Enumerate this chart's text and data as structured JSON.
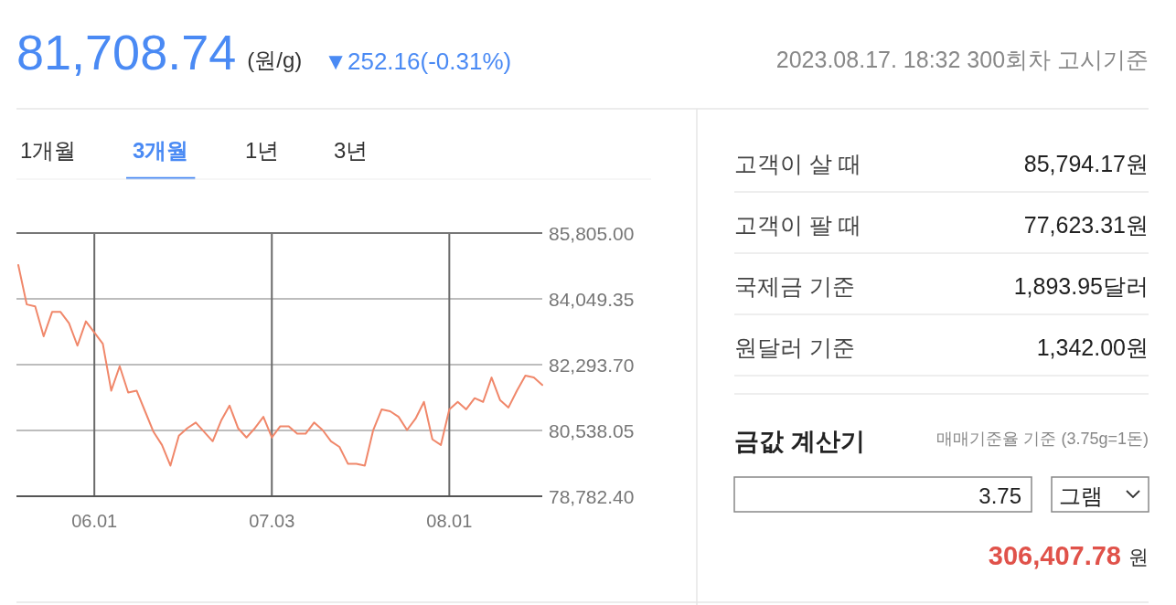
{
  "chart_data": [
    {
      "type": "line",
      "title": "81,708.74",
      "subtitle": "(원/g)",
      "annotations": [
        "▼252.16(-0.31%)",
        "2023.08.17. 18:32 300회차 고시기준",
        "1개월",
        "3개월",
        "1년",
        "3년"
      ],
      "categories": [
        null,
        null,
        null,
        null,
        null,
        null,
        null,
        null,
        null,
        "06.01",
        null,
        null,
        null,
        null,
        null,
        null,
        null,
        null,
        null,
        null,
        null,
        null,
        null,
        null,
        null,
        null,
        null,
        null,
        null,
        null,
        "07.03",
        null,
        null,
        null,
        null,
        null,
        null,
        null,
        null,
        null,
        null,
        null,
        null,
        null,
        null,
        null,
        null,
        null,
        null,
        null,
        null,
        "08.01",
        null,
        null,
        null,
        null,
        null,
        null,
        null,
        null,
        null,
        null,
        null
      ],
      "series": [
        {
          "color": "#f0876a",
          "values": [
            84950,
            83900,
            83850,
            83050,
            83700,
            83700,
            83400,
            82800,
            83450,
            83150,
            82850,
            81600,
            82250,
            81550,
            81600,
            81050,
            80500,
            80150,
            79600,
            80400,
            80600,
            80750,
            80500,
            80250,
            80800,
            81200,
            80600,
            80350,
            80600,
            80900,
            80350,
            80650,
            80650,
            80450,
            80450,
            80750,
            80550,
            80250,
            80100,
            79650,
            79650,
            79600,
            80550,
            81100,
            81050,
            80900,
            80550,
            80850,
            81300,
            80300,
            80150,
            81100,
            81300,
            81100,
            81400,
            81300,
            81950,
            81350,
            81150,
            81600,
            82000,
            81950,
            81750
          ]
        }
      ],
      "ylim": [
        78782.4,
        85805
      ],
      "yticks": [
        {
          "value": 85805,
          "label": "85,805.00"
        },
        {
          "value": 84049.35,
          "label": "84,049.35"
        },
        {
          "value": 82293.7,
          "label": "82,293.70"
        },
        {
          "value": 80538.05,
          "label": "80,538.05"
        },
        {
          "value": 78782.4,
          "label": "78,782.40"
        }
      ],
      "grid": true
    },
    {
      "type": "other",
      "title": "금값 계산기",
      "subtitle": "매매기준율 기준 (3.75g=1돈)",
      "annotations": [
        "고객이 살 때",
        "85,794.17원",
        "고객이 팔 때",
        "77,623.31원",
        "국제금 기준",
        "1,893.95달러",
        "원달러 기준",
        "1,342.00원",
        "3.75",
        "그램",
        "306,407.78",
        "원"
      ]
    }
  ]
}
